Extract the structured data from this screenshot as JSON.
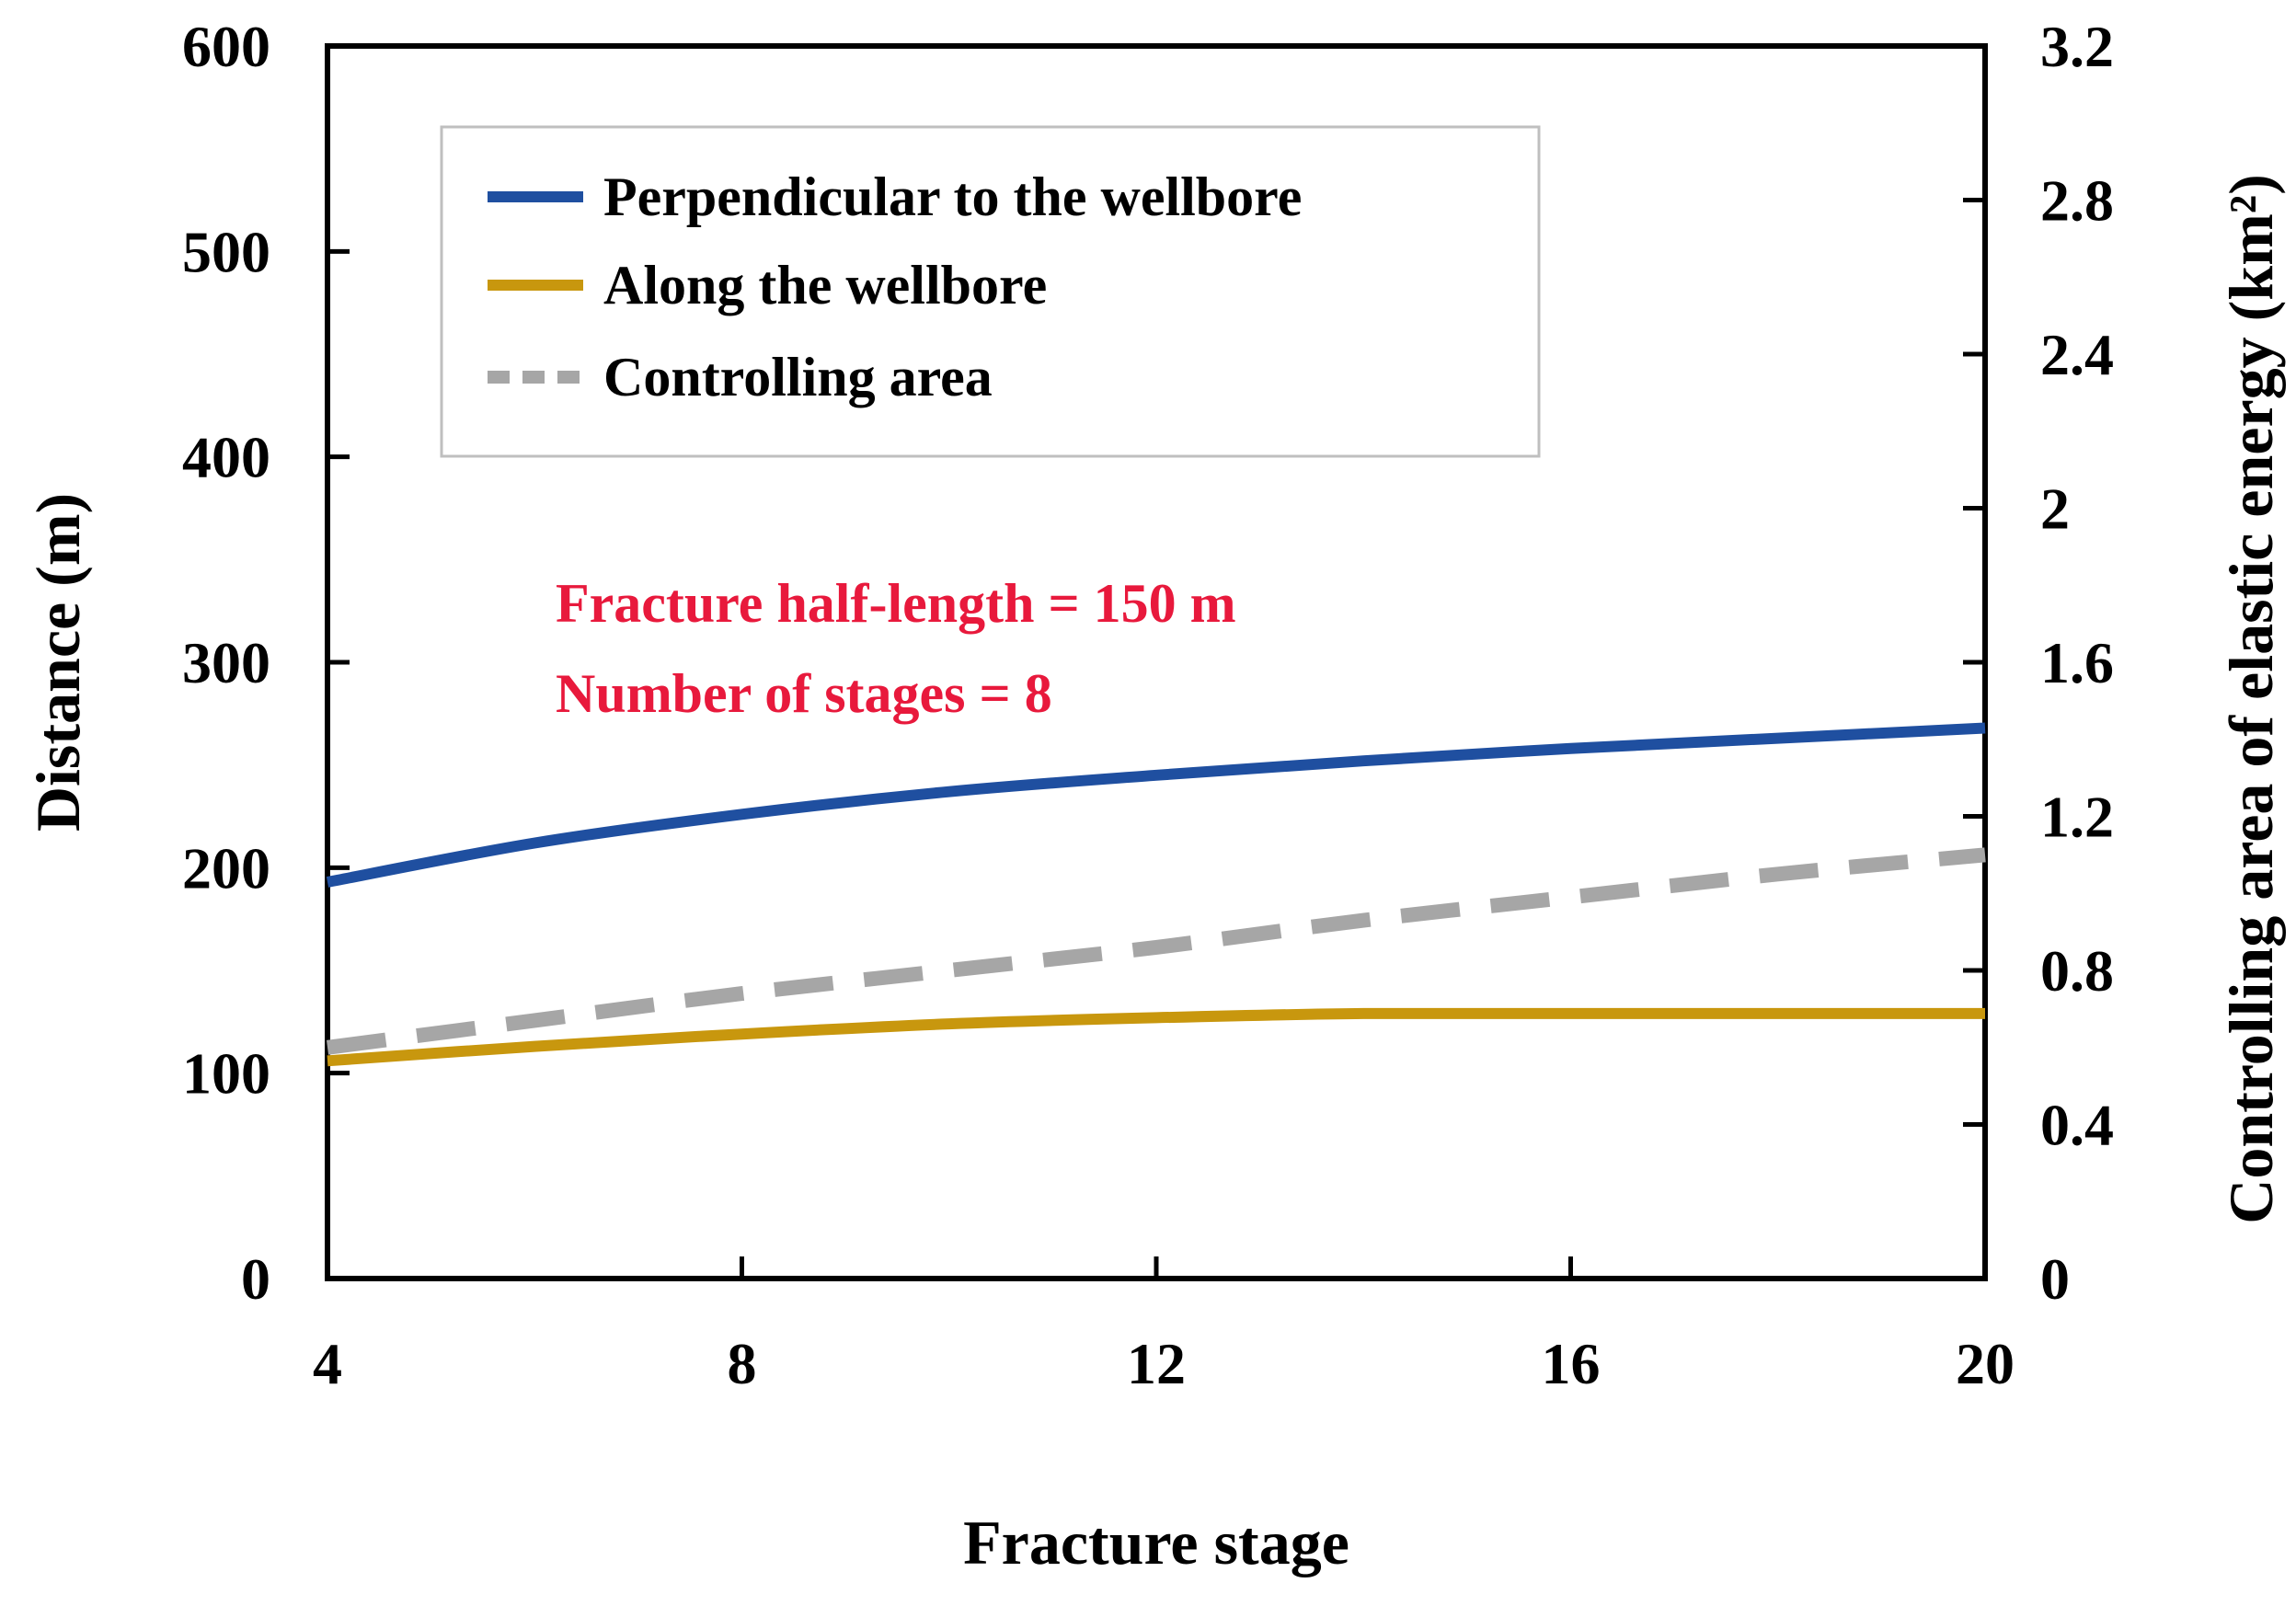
{
  "chart_data": {
    "type": "line",
    "title": "",
    "xlabel": "Fracture stage",
    "ylabel": "Distance (m)",
    "y2label": "Controlling area of elastic energy (km²)",
    "xlim": [
      4,
      20
    ],
    "ylim": [
      0,
      600
    ],
    "y2lim": [
      0,
      3.2
    ],
    "x_ticks": [
      "4",
      "8",
      "12",
      "16",
      "20"
    ],
    "y_ticks": [
      "0",
      "100",
      "200",
      "300",
      "400",
      "500",
      "600"
    ],
    "y2_ticks": [
      "0",
      "0.4",
      "0.8",
      "1.2",
      "1.6",
      "2",
      "2.4",
      "2.8",
      "3.2"
    ],
    "grid": false,
    "legend_position": "top-left",
    "series": [
      {
        "name": "Perpendicular to the wellbore",
        "axis": "left",
        "color": "#1f4fa0",
        "style": "solid",
        "x": [
          4,
          6,
          8,
          10,
          12,
          14,
          16,
          18,
          20
        ],
        "y": [
          193,
          212,
          226,
          237,
          245,
          252,
          258,
          263,
          268
        ]
      },
      {
        "name": "Along the wellbore",
        "axis": "left",
        "color": "#c8970e",
        "style": "solid",
        "x": [
          4,
          6,
          8,
          10,
          12,
          14,
          16,
          18,
          20
        ],
        "y": [
          106,
          113,
          119,
          124,
          127,
          129,
          129,
          129,
          129
        ]
      },
      {
        "name": "Controlling area",
        "axis": "right",
        "color": "#a6a6a6",
        "style": "dashed",
        "x": [
          4,
          6,
          8,
          10,
          12,
          14,
          16,
          18,
          20
        ],
        "y": [
          0.6,
          0.67,
          0.74,
          0.8,
          0.86,
          0.93,
          0.99,
          1.05,
          1.1
        ]
      }
    ],
    "annotations": [
      "Fracture half-length = 150 m",
      "Number of stages = 8"
    ]
  }
}
